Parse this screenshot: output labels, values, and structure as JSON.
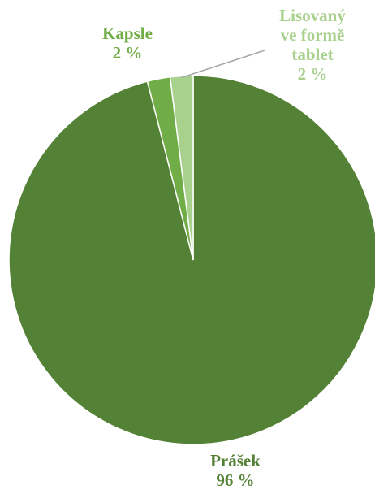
{
  "chart_data": {
    "type": "pie",
    "title": "",
    "start_angle_deg": 0,
    "direction": "clockwise",
    "legend": "none",
    "slices": [
      {
        "category": "Prášek",
        "value": 96,
        "value_label": "96 %",
        "label_lines": [
          "Prášek"
        ],
        "color": "#538135",
        "text_color": "#538135"
      },
      {
        "category": "Kapsle",
        "value": 2,
        "value_label": "2 %",
        "label_lines": [
          "Kapsle"
        ],
        "color": "#70AD47",
        "text_color": "#70AD47"
      },
      {
        "category": "Lisovaný ve formě tablet",
        "value": 2,
        "value_label": "2 %",
        "label_lines": [
          "Lisovaný",
          "ve formě",
          "tablet"
        ],
        "color": "#A9D18E",
        "text_color": "#A9D18E"
      }
    ],
    "leader_line_color": "#A6A6A6"
  }
}
